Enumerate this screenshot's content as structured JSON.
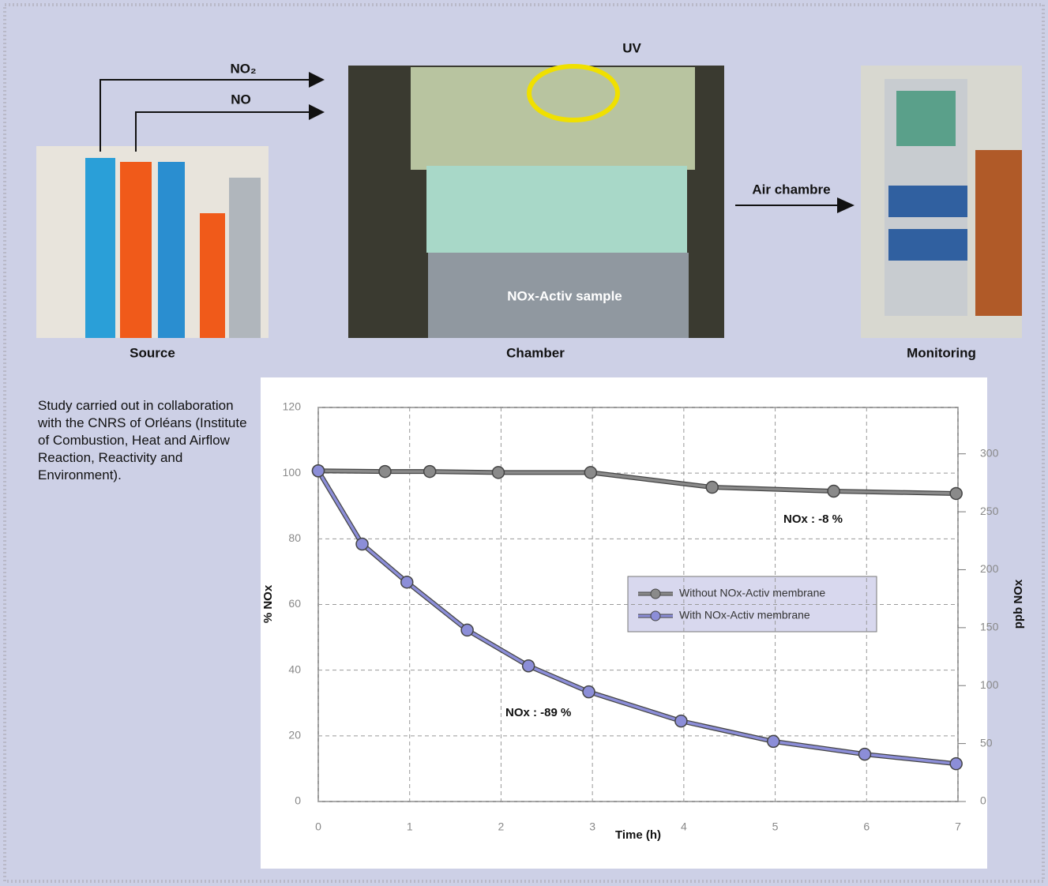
{
  "diagram": {
    "source": "Source",
    "chamber": "Chamber",
    "monitoring": "Monitoring",
    "no2": "NO₂",
    "no": "NO",
    "uv": "UV",
    "air": "Air chambre",
    "sample": "NOx-Activ sample",
    "note": "Study carried out in collaboration with the CNRS of Orléans (Institute of Combustion, Heat and Airflow Reaction, Reactivity and Environment)."
  },
  "chart_data": {
    "type": "line",
    "xlabel": "Time (h)",
    "ylabel": "% NOx",
    "y2label": "ppb NOx",
    "xlim": [
      0,
      7
    ],
    "xticks": [
      0,
      1,
      2,
      3,
      4,
      5,
      6,
      7
    ],
    "ylim": [
      0,
      120
    ],
    "yticks": [
      0,
      20,
      40,
      60,
      80,
      100,
      120
    ],
    "y2lim": [
      0,
      340
    ],
    "y2ticks": [
      0,
      50,
      100,
      150,
      200,
      250,
      300
    ],
    "grid": true,
    "legend": "center right",
    "series": [
      {
        "name": "Without NOx-Activ membrane",
        "color": "#8a8a8a",
        "x": [
          0,
          0.73,
          1.22,
          1.97,
          2.98,
          4.31,
          5.64,
          6.98
        ],
        "values": [
          100.7,
          100.5,
          100.5,
          100.2,
          100.2,
          95.7,
          94.5,
          93.8
        ]
      },
      {
        "name": "With NOx-Activ membrane",
        "color": "#8c8ed8",
        "x": [
          0,
          0.48,
          0.97,
          1.63,
          2.3,
          2.96,
          3.97,
          4.98,
          5.98,
          6.98
        ],
        "values": [
          100.7,
          78.4,
          66.8,
          52.2,
          41.3,
          33.4,
          24.5,
          18.3,
          14.4,
          11.5
        ]
      }
    ],
    "annotations": [
      "NOx : -8 %",
      "NOx : -89 %"
    ]
  }
}
